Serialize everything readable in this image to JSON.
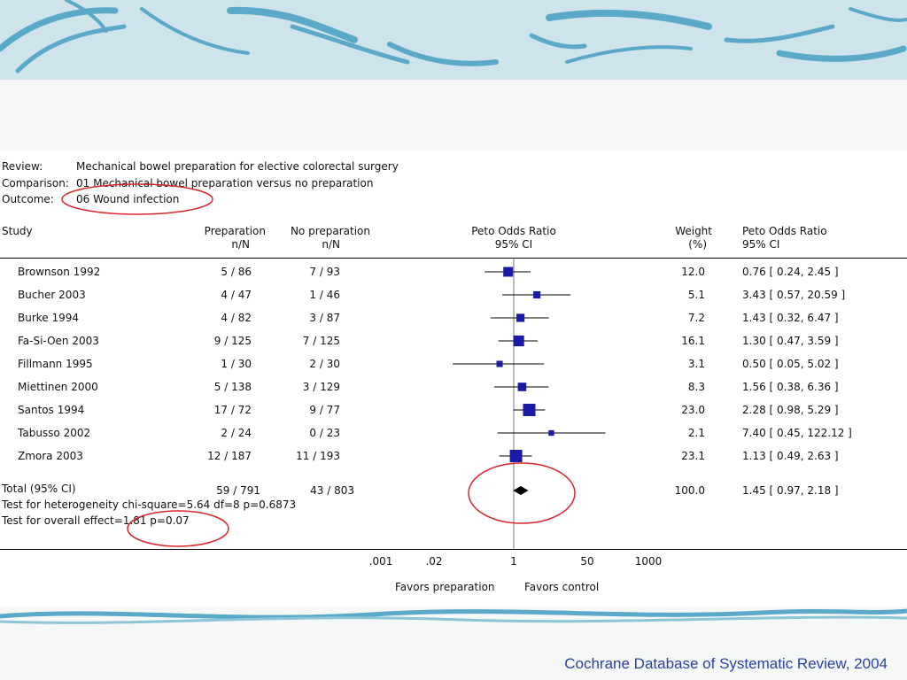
{
  "review_label": "Review:",
  "review_text": "Mechanical bowel preparation for elective colorectal surgery",
  "comparison_label": "Comparison:",
  "comparison_text": "01 Mechanical bowel preparation versus no preparation",
  "outcome_label": "Outcome:",
  "outcome_text": "06 Wound infection",
  "headers": {
    "study": "Study",
    "prep": "Preparation",
    "prep_sub": "n/N",
    "noprep": "No preparation",
    "noprep_sub": "n/N",
    "peto": "Peto Odds Ratio",
    "peto_sub": "95% CI",
    "weight": "Weight",
    "weight_sub": "(%)",
    "peto2": "Peto Odds Ratio",
    "peto2_sub": "95% CI"
  },
  "total": {
    "label": "Total (95% CI)",
    "prep": "59 / 791",
    "noprep": "43 / 803",
    "weight": "100.0",
    "ci_text": "1.45 [ 0.97, 2.18 ]",
    "heterogeneity": "Test for heterogeneity chi-square=5.64 df=8 p=0.6873",
    "overall": "Test for overall effect=1.81 p=0.07"
  },
  "favors_left": "Favors preparation",
  "favors_right": "Favors control",
  "citation": "Cochrane Database of Systematic Review, 2004",
  "colors": {
    "marker": "#1a1aa6",
    "highlight": "#d9262b",
    "citation": "#2b3fa8"
  },
  "chart_data": {
    "type": "forest",
    "x_scale": "log",
    "x_ticks": [
      ".001",
      ".02",
      "1",
      "50",
      "1000"
    ],
    "x_tick_values": [
      0.001,
      0.02,
      1,
      50,
      1000
    ],
    "studies": [
      {
        "name": "Brownson  1992",
        "prep": "5 / 86",
        "noprep": "7 / 93",
        "weight": "12.0",
        "ci_text": "0.76 [ 0.24, 2.45 ]",
        "or": 0.76,
        "lo": 0.24,
        "hi": 2.45,
        "w": 12.0
      },
      {
        "name": "Bucher 2003",
        "prep": "4 / 47",
        "noprep": "1 / 46",
        "weight": "5.1",
        "ci_text": "3.43 [ 0.57, 20.59 ]",
        "or": 3.43,
        "lo": 0.57,
        "hi": 20.59,
        "w": 5.1
      },
      {
        "name": "Burke 1994",
        "prep": "4 / 82",
        "noprep": "3 / 87",
        "weight": "7.2",
        "ci_text": "1.43 [ 0.32, 6.47 ]",
        "or": 1.43,
        "lo": 0.32,
        "hi": 6.47,
        "w": 7.2
      },
      {
        "name": "Fa-Si-Oen 2003",
        "prep": "9 / 125",
        "noprep": "7 / 125",
        "weight": "16.1",
        "ci_text": "1.30 [ 0.47, 3.59 ]",
        "or": 1.3,
        "lo": 0.47,
        "hi": 3.59,
        "w": 16.1
      },
      {
        "name": "Fillmann 1995",
        "prep": "1 / 30",
        "noprep": "2 / 30",
        "weight": "3.1",
        "ci_text": "0.50 [ 0.05, 5.02 ]",
        "or": 0.5,
        "lo": 0.05,
        "hi": 5.02,
        "w": 3.1
      },
      {
        "name": "Miettinen 2000",
        "prep": "5 / 138",
        "noprep": "3 / 129",
        "weight": "8.3",
        "ci_text": "1.56 [ 0.38, 6.36 ]",
        "or": 1.56,
        "lo": 0.38,
        "hi": 6.36,
        "w": 8.3
      },
      {
        "name": "Santos 1994",
        "prep": "17 / 72",
        "noprep": "9 / 77",
        "weight": "23.0",
        "ci_text": "2.28 [ 0.98, 5.29 ]",
        "or": 2.28,
        "lo": 0.98,
        "hi": 5.29,
        "w": 23.0
      },
      {
        "name": "Tabusso 2002",
        "prep": "2 / 24",
        "noprep": "0 / 23",
        "weight": "2.1",
        "ci_text": "7.40 [ 0.45, 122.12 ]",
        "or": 7.4,
        "lo": 0.45,
        "hi": 122.12,
        "w": 2.1
      },
      {
        "name": "Zmora 2003",
        "prep": "12 / 187",
        "noprep": "11 / 193",
        "weight": "23.1",
        "ci_text": "1.13 [ 0.49, 2.63 ]",
        "or": 1.13,
        "lo": 0.49,
        "hi": 2.63,
        "w": 23.1
      }
    ],
    "pooled": {
      "or": 1.45,
      "lo": 0.97,
      "hi": 2.18
    }
  }
}
